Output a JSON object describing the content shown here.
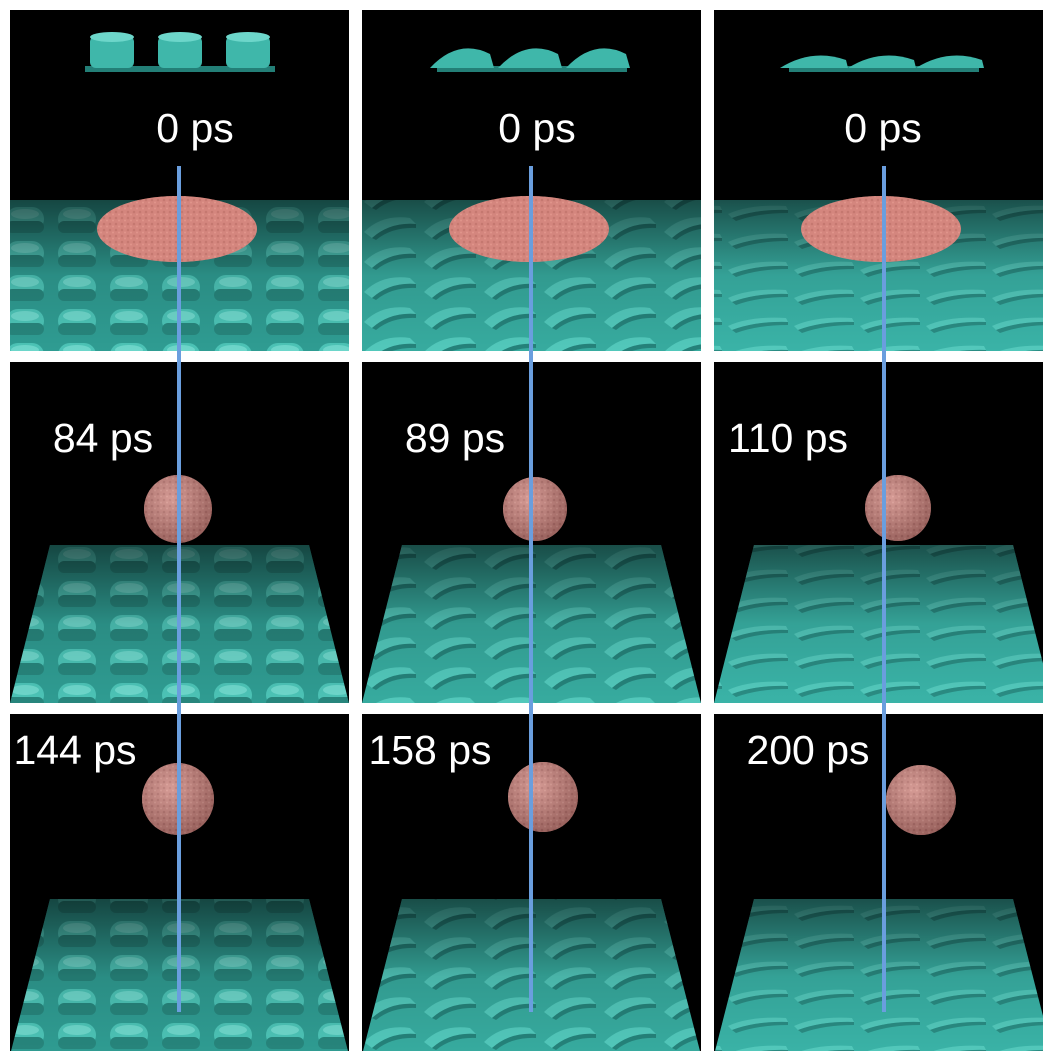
{
  "colors": {
    "background": "#ffffff",
    "panel": "#000000",
    "surface": "#3fb7aa",
    "surface_shade": "#237f77",
    "droplet": "#c98a84",
    "droplet_flat": "#dd8379",
    "marker_line": "#6a9ede",
    "label_text": "#ffffff"
  },
  "panels": [
    {
      "time_label": "0 ps",
      "surface": "pillars",
      "droplet": "spread"
    },
    {
      "time_label": "0 ps",
      "surface": "tilted",
      "droplet": "spread"
    },
    {
      "time_label": "0 ps",
      "surface": "flat",
      "droplet": "spread"
    },
    {
      "time_label": "84 ps",
      "surface": "pillars",
      "droplet": "sphere"
    },
    {
      "time_label": "89 ps",
      "surface": "tilted",
      "droplet": "sphere"
    },
    {
      "time_label": "110 ps",
      "surface": "flat",
      "droplet": "sphere"
    },
    {
      "time_label": "144 ps",
      "surface": "pillars",
      "droplet": "sphere"
    },
    {
      "time_label": "158 ps",
      "surface": "tilted",
      "droplet": "sphere"
    },
    {
      "time_label": "200 ps",
      "surface": "flat",
      "droplet": "sphere"
    }
  ]
}
